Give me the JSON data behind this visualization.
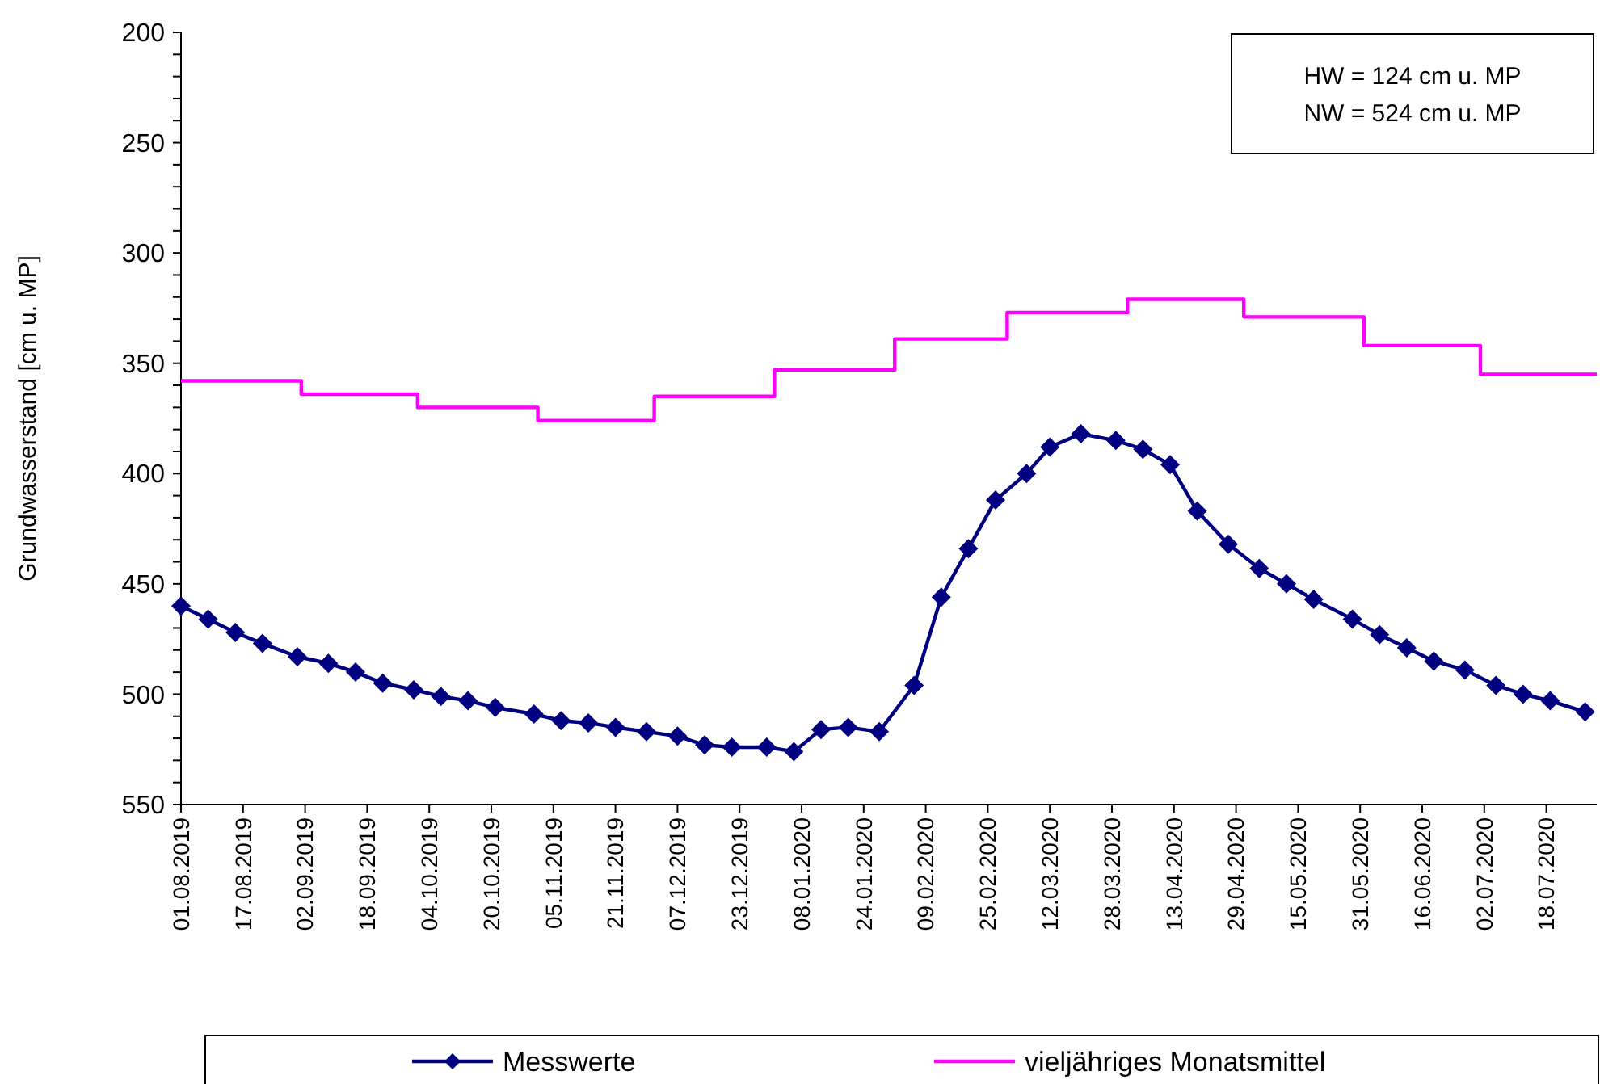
{
  "chart_data": {
    "type": "line",
    "ylabel": "Grundwasserstand  [cm u. MP]",
    "annotations": [
      "HW = 124 cm u. MP",
      "NW = 524 cm u. MP"
    ],
    "xlim": [
      "2019-08-01",
      "2020-07-31"
    ],
    "xticks": [
      {
        "value": "2019-08-01",
        "label": "01.08.2019"
      },
      {
        "value": "2019-08-17",
        "label": "17.08.2019"
      },
      {
        "value": "2019-09-02",
        "label": "02.09.2019"
      },
      {
        "value": "2019-09-18",
        "label": "18.09.2019"
      },
      {
        "value": "2019-10-04",
        "label": "04.10.2019"
      },
      {
        "value": "2019-10-20",
        "label": "20.10.2019"
      },
      {
        "value": "2019-11-05",
        "label": "05.11.2019"
      },
      {
        "value": "2019-11-21",
        "label": "21.11.2019"
      },
      {
        "value": "2019-12-07",
        "label": "07.12.2019"
      },
      {
        "value": "2019-12-23",
        "label": "23.12.2019"
      },
      {
        "value": "2020-01-08",
        "label": "08.01.2020"
      },
      {
        "value": "2020-01-24",
        "label": "24.01.2020"
      },
      {
        "value": "2020-02-09",
        "label": "09.02.2020"
      },
      {
        "value": "2020-02-25",
        "label": "25.02.2020"
      },
      {
        "value": "2020-03-12",
        "label": "12.03.2020"
      },
      {
        "value": "2020-03-28",
        "label": "28.03.2020"
      },
      {
        "value": "2020-04-13",
        "label": "13.04.2020"
      },
      {
        "value": "2020-04-29",
        "label": "29.04.2020"
      },
      {
        "value": "2020-05-15",
        "label": "15.05.2020"
      },
      {
        "value": "2020-05-31",
        "label": "31.05.2020"
      },
      {
        "value": "2020-06-16",
        "label": "16.06.2020"
      },
      {
        "value": "2020-07-02",
        "label": "02.07.2020"
      },
      {
        "value": "2020-07-18",
        "label": "18.07.2020"
      }
    ],
    "ylim": [
      550,
      200
    ],
    "yticks": [
      200,
      {
        "value": 210,
        "label": null
      },
      {
        "value": 220,
        "label": null
      },
      {
        "value": 230,
        "label": null
      },
      {
        "value": 240,
        "label": null
      },
      250,
      {
        "value": 260,
        "label": null
      },
      {
        "value": 270,
        "label": null
      },
      {
        "value": 280,
        "label": null
      },
      {
        "value": 290,
        "label": null
      },
      300,
      {
        "value": 310,
        "label": null
      },
      {
        "value": 320,
        "label": null
      },
      {
        "value": 330,
        "label": null
      },
      {
        "value": 340,
        "label": null
      },
      350,
      {
        "value": 360,
        "label": null
      },
      {
        "value": 370,
        "label": null
      },
      {
        "value": 380,
        "label": null
      },
      {
        "value": 390,
        "label": null
      },
      400,
      {
        "value": 410,
        "label": null
      },
      {
        "value": 420,
        "label": null
      },
      {
        "value": 430,
        "label": null
      },
      {
        "value": 440,
        "label": null
      },
      450,
      {
        "value": 460,
        "label": null
      },
      {
        "value": 470,
        "label": null
      },
      {
        "value": 480,
        "label": null
      },
      {
        "value": 490,
        "label": null
      },
      500,
      {
        "value": 510,
        "label": null
      },
      {
        "value": 520,
        "label": null
      },
      {
        "value": 530,
        "label": null
      },
      {
        "value": 540,
        "label": null
      },
      550
    ],
    "grid": false,
    "legend": "bottom",
    "series": [
      {
        "name": "Messwerte",
        "type": "line",
        "color": "#000080",
        "marker": "diamond",
        "line_style": "solid",
        "x": [
          "2019-08-01",
          "2019-08-08",
          "2019-08-15",
          "2019-08-22",
          "2019-08-31",
          "2019-09-08",
          "2019-09-15",
          "2019-09-22",
          "2019-09-30",
          "2019-10-07",
          "2019-10-14",
          "2019-10-21",
          "2019-10-31",
          "2019-11-07",
          "2019-11-14",
          "2019-11-21",
          "2019-11-29",
          "2019-12-07",
          "2019-12-14",
          "2019-12-21",
          "2019-12-30",
          "2020-01-06",
          "2020-01-13",
          "2020-01-20",
          "2020-01-28",
          "2020-02-06",
          "2020-02-13",
          "2020-02-20",
          "2020-02-27",
          "2020-03-06",
          "2020-03-12",
          "2020-03-20",
          "2020-03-29",
          "2020-04-05",
          "2020-04-12",
          "2020-04-19",
          "2020-04-27",
          "2020-05-05",
          "2020-05-12",
          "2020-05-19",
          "2020-05-29",
          "2020-06-05",
          "2020-06-12",
          "2020-06-19",
          "2020-06-27",
          "2020-07-05",
          "2020-07-12",
          "2020-07-19",
          "2020-07-28"
        ],
        "values": [
          460,
          466,
          472,
          477,
          483,
          486,
          490,
          495,
          498,
          501,
          503,
          506,
          509,
          512,
          513,
          515,
          517,
          519,
          523,
          524,
          524,
          526,
          516,
          515,
          517,
          496,
          456,
          434,
          412,
          400,
          388,
          382,
          385,
          389,
          396,
          417,
          432,
          443,
          450,
          457,
          466,
          473,
          479,
          485,
          489,
          496,
          500,
          503,
          508
        ]
      },
      {
        "name": "vieljähriges Monatsmittel",
        "type": "step",
        "color": "#ff00ff",
        "marker": "none",
        "line_style": "solid",
        "x": [
          "2019-08-01",
          "2019-09-01",
          "2019-10-01",
          "2019-11-01",
          "2019-12-01",
          "2020-01-01",
          "2020-02-01",
          "2020-03-01",
          "2020-04-01",
          "2020-05-01",
          "2020-06-01",
          "2020-07-01",
          "2020-07-31"
        ],
        "values": [
          358,
          364,
          370,
          376,
          365,
          353,
          339,
          327,
          321,
          329,
          342,
          355,
          355
        ]
      }
    ]
  }
}
